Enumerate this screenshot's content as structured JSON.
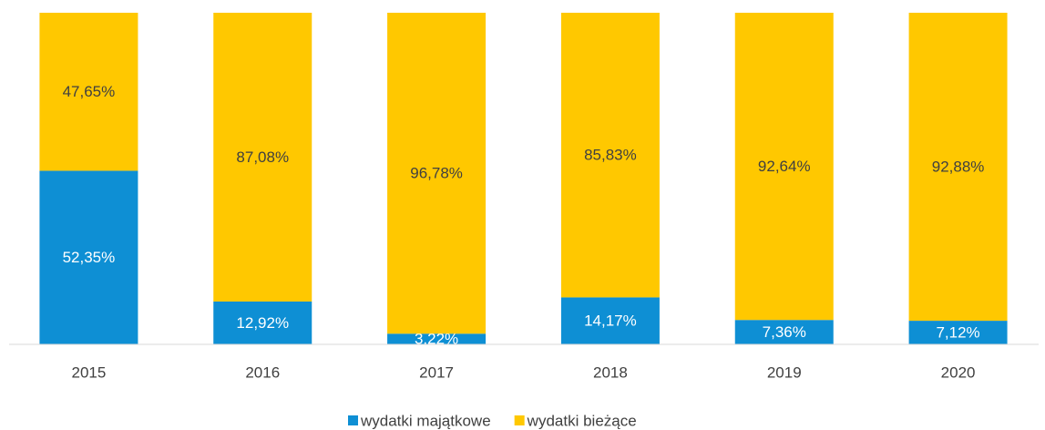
{
  "chart_data": {
    "type": "bar",
    "stacked": true,
    "categories": [
      "2015",
      "2016",
      "2017",
      "2018",
      "2019",
      "2020"
    ],
    "series": [
      {
        "name": "wydatki majątkowe",
        "color": "#0E8FD4",
        "values": [
          52.35,
          12.92,
          3.22,
          14.17,
          7.36,
          7.12
        ],
        "value_labels": [
          "52,35%",
          "12,92%",
          "3,22%",
          "14,17%",
          "7,36%",
          "7,12%"
        ]
      },
      {
        "name": "wydatki bieżące",
        "color": "#FFC800",
        "values": [
          47.65,
          87.08,
          96.78,
          85.83,
          92.64,
          92.88
        ],
        "value_labels": [
          "47,65%",
          "87,08%",
          "96,78%",
          "85,83%",
          "92,64%",
          "92,88%"
        ]
      }
    ]
  }
}
